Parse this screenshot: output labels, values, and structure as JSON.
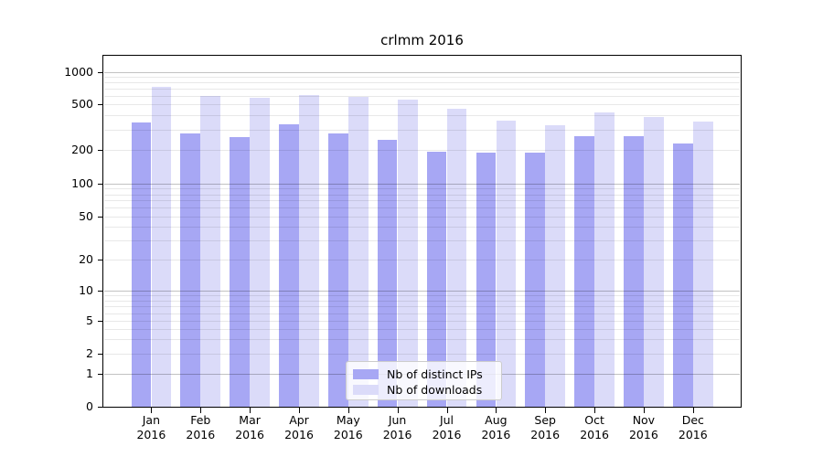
{
  "figure": {
    "background": "#ffffff"
  },
  "chart_data": {
    "type": "bar",
    "title": "crlmm 2016",
    "categories": [
      "Jan",
      "Feb",
      "Mar",
      "Apr",
      "May",
      "Jun",
      "Jul",
      "Aug",
      "Sep",
      "Oct",
      "Nov",
      "Dec"
    ],
    "year": "2016",
    "series": [
      {
        "name": "Nb of distinct IPs",
        "color": "#a7a7f4",
        "values": [
          345,
          280,
          260,
          334,
          280,
          244,
          193,
          192,
          192,
          264,
          262,
          229
        ]
      },
      {
        "name": "Nb of downloads",
        "color": "#dbdbf9",
        "values": [
          729,
          589,
          567,
          604,
          578,
          554,
          453,
          359,
          328,
          422,
          387,
          350
        ]
      }
    ],
    "xlabel": "",
    "ylabel": "",
    "y_ticks": [
      0,
      1,
      2,
      5,
      10,
      20,
      50,
      100,
      200,
      500,
      1000
    ],
    "y_scale": "log-like (compressed near zero)",
    "ylim": [
      0,
      1400
    ],
    "grid": "horizontal log gridlines, majors at powers of 10",
    "legend": {
      "position": "lower center",
      "entries": [
        "Nb of distinct IPs",
        "Nb of downloads"
      ]
    }
  }
}
